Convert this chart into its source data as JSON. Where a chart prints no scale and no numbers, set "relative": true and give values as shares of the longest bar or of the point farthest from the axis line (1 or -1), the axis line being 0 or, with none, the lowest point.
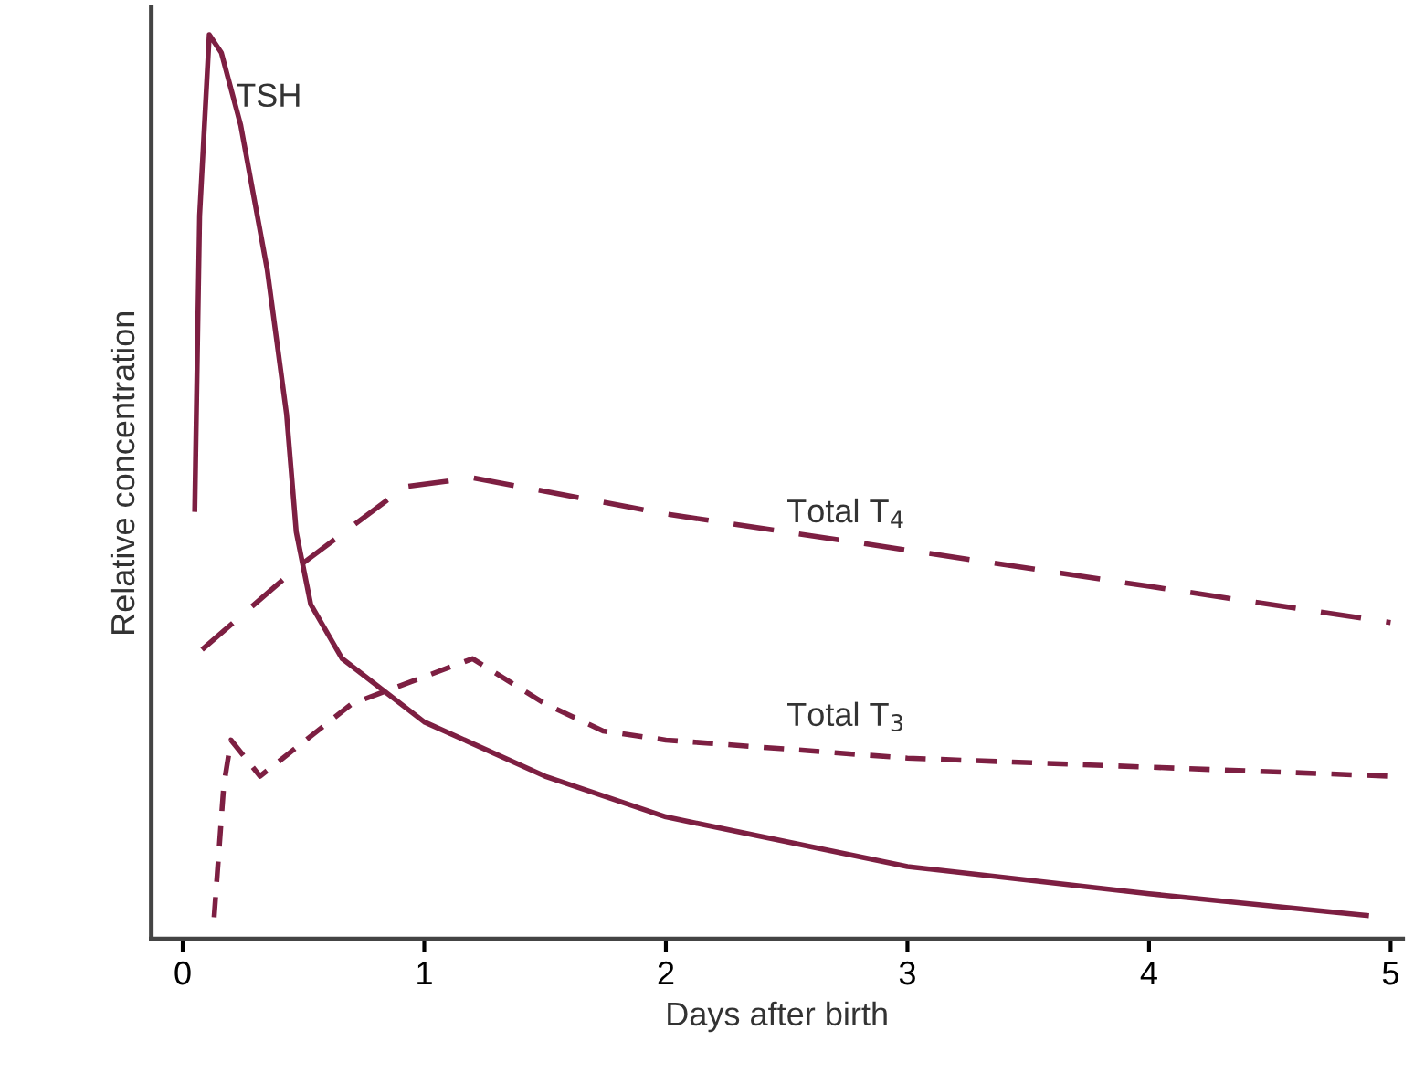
{
  "chart_data": {
    "type": "line",
    "relative": true,
    "xlabel": "Days after birth",
    "ylabel": "Relative concentration",
    "xlim": [
      -0.13,
      5.05
    ],
    "xticks": [
      0,
      1,
      2,
      3,
      4,
      5
    ],
    "tick_labels": "x",
    "grid": false,
    "legend": false,
    "series": [
      {
        "name": "TSH",
        "color": "#7d1f42",
        "line_style": "solid",
        "x": [
          0.05,
          0.07,
          0.11,
          0.16,
          0.24,
          0.35,
          0.43,
          0.47,
          0.53,
          0.66,
          1.0,
          1.5,
          2.0,
          3.0,
          4.0,
          4.9
        ],
        "values": [
          0.475,
          0.8,
          1.0,
          0.98,
          0.9,
          0.74,
          0.58,
          0.45,
          0.37,
          0.31,
          0.24,
          0.18,
          0.135,
          0.08,
          0.05,
          0.026
        ]
      },
      {
        "name": "Total T$_{4}$",
        "color": "#7d1f42",
        "line_style": "dashed",
        "x": [
          0.08,
          0.47,
          0.92,
          1.2,
          2.0,
          3.0,
          4.0,
          5.0
        ],
        "values": [
          0.32,
          0.41,
          0.5,
          0.51,
          0.47,
          0.43,
          0.39,
          0.35
        ]
      },
      {
        "name": "Total T$_{3}$",
        "color": "#7d1f42",
        "line_style": "dashed",
        "x": [
          0.13,
          0.17,
          0.2,
          0.32,
          0.7,
          1.2,
          1.5,
          1.74,
          2.0,
          3.0,
          4.0,
          5.0
        ],
        "values": [
          0.024,
          0.17,
          0.22,
          0.18,
          0.26,
          0.31,
          0.26,
          0.23,
          0.22,
          0.2,
          0.19,
          0.18
        ]
      }
    ]
  }
}
